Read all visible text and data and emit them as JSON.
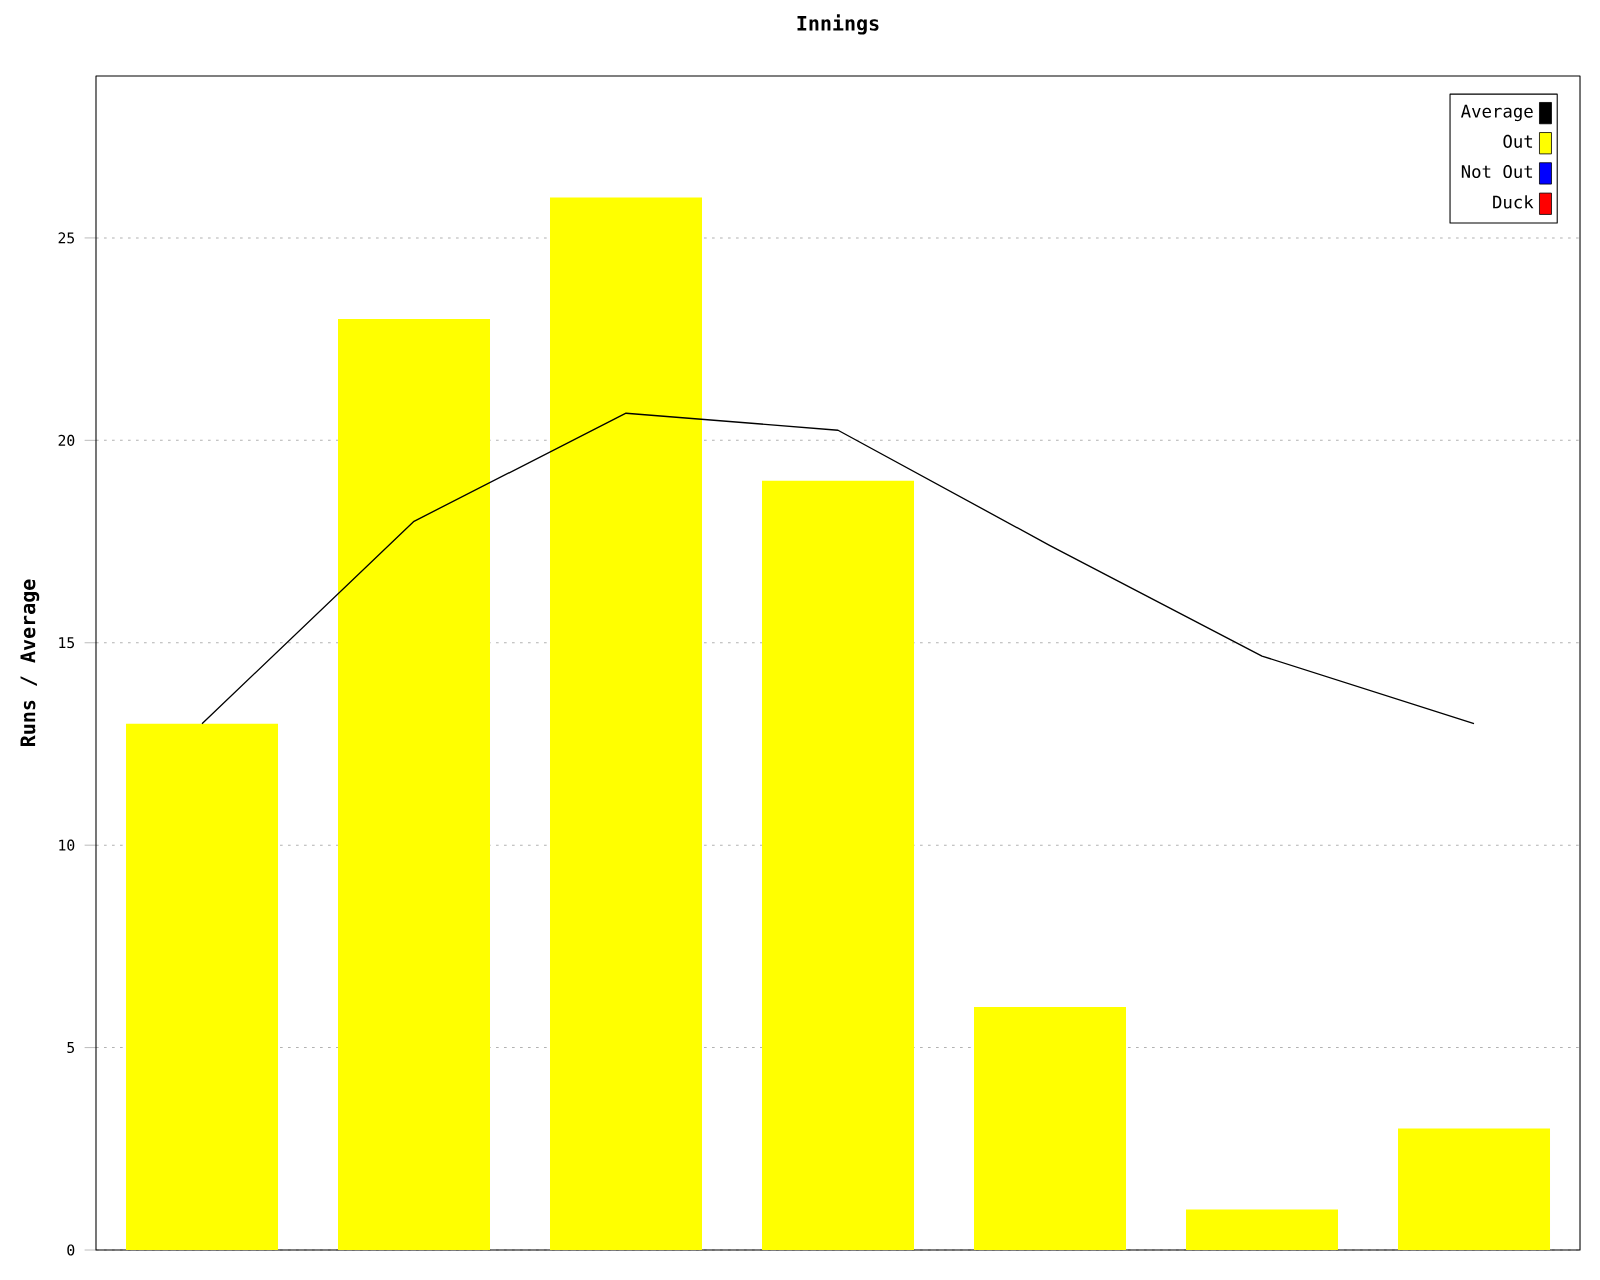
{
  "chart_data": {
    "type": "bar",
    "title": "Innings",
    "ylabel": "Runs / Average",
    "categories": [
      null,
      null,
      null,
      null,
      null,
      null,
      null
    ],
    "series": [
      {
        "name": "Average",
        "type": "line",
        "color": "#000000",
        "values": [
          13,
          18,
          20.67,
          20.25,
          17.4,
          14.67,
          13
        ]
      },
      {
        "name": "Out",
        "color": "#ffff00",
        "values": [
          13,
          23,
          26,
          19,
          6,
          1,
          3
        ]
      },
      {
        "name": "Not Out",
        "color": "#0000ff",
        "values": [
          null,
          null,
          null,
          null,
          null,
          null,
          null
        ]
      },
      {
        "name": "Duck",
        "color": "#ff0000",
        "values": [
          null,
          null,
          null,
          null,
          null,
          null,
          null
        ]
      }
    ],
    "ylim": [
      0,
      29
    ],
    "yticks": [
      0,
      5,
      10,
      15,
      20,
      25
    ],
    "grid": "y",
    "legend": "top right",
    "marker": "none"
  }
}
